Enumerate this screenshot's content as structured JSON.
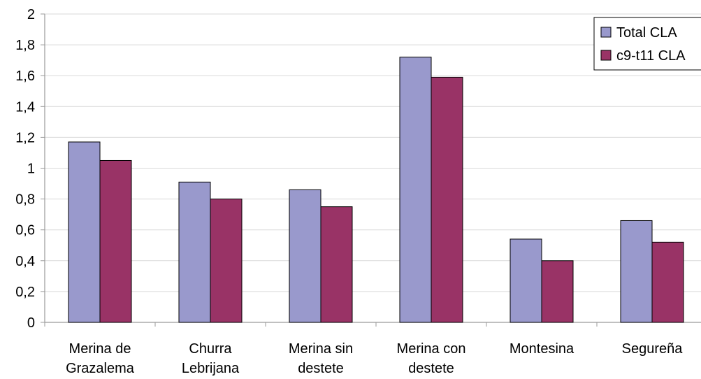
{
  "chart_data": {
    "type": "bar",
    "categories": [
      [
        "Merina de",
        "Grazalema"
      ],
      [
        "Churra",
        "Lebrijana"
      ],
      [
        "Merina sin",
        "destete"
      ],
      [
        "Merina con",
        "destete"
      ],
      [
        "Montesina"
      ],
      [
        "Segureña"
      ]
    ],
    "series": [
      {
        "name": "Total CLA",
        "color": "#9999cc",
        "values": [
          1.17,
          0.91,
          0.86,
          1.72,
          0.54,
          0.66
        ]
      },
      {
        "name": "c9-t11 CLA",
        "color": "#993366",
        "values": [
          1.05,
          0.8,
          0.75,
          1.59,
          0.4,
          0.52
        ]
      }
    ],
    "ylim": [
      0,
      2
    ],
    "yticks": [
      "0",
      "0,2",
      "0,4",
      "0,6",
      "0,8",
      "1",
      "1,2",
      "1,4",
      "1,6",
      "1,8",
      "2"
    ],
    "grid": true,
    "legend_position": "top-right"
  }
}
